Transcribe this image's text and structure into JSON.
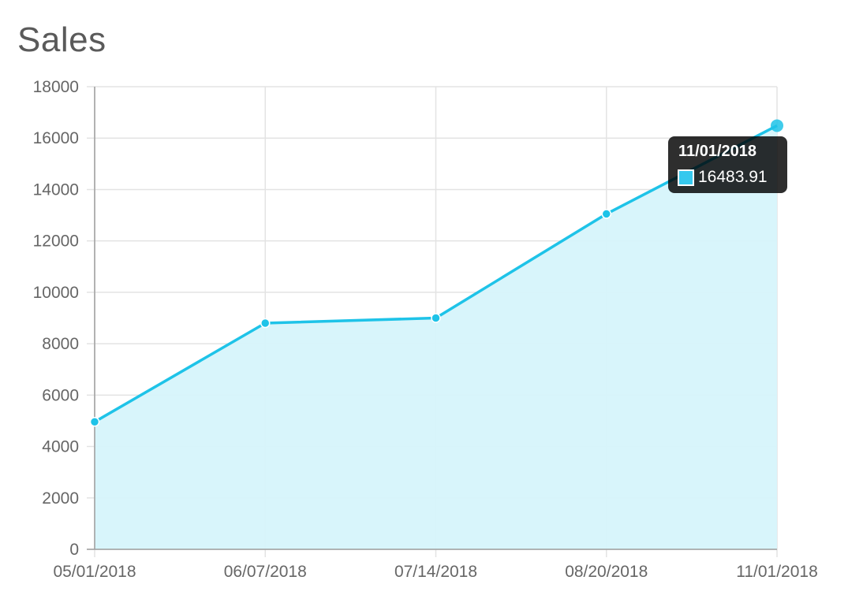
{
  "title": "Sales",
  "colors": {
    "line": "#1ec3e8",
    "fill": "#d6f4fb",
    "point": "#1ec3e8",
    "grid": "#e3e3e3",
    "axis": "#9e9e9e"
  },
  "chart_data": {
    "type": "area",
    "title": "Sales",
    "x": [
      "05/01/2018",
      "06/07/2018",
      "07/14/2018",
      "08/20/2018",
      "11/01/2018"
    ],
    "series": [
      {
        "values": [
          4960,
          8800,
          9000,
          13050,
          16483.91
        ]
      }
    ],
    "ylim": [
      0,
      18000
    ],
    "yticks": [
      0,
      2000,
      4000,
      6000,
      8000,
      10000,
      12000,
      14000,
      16000,
      18000
    ],
    "grid": true,
    "legend": "none",
    "tooltip": {
      "title": "11/01/2018",
      "value": "16483.91"
    }
  }
}
